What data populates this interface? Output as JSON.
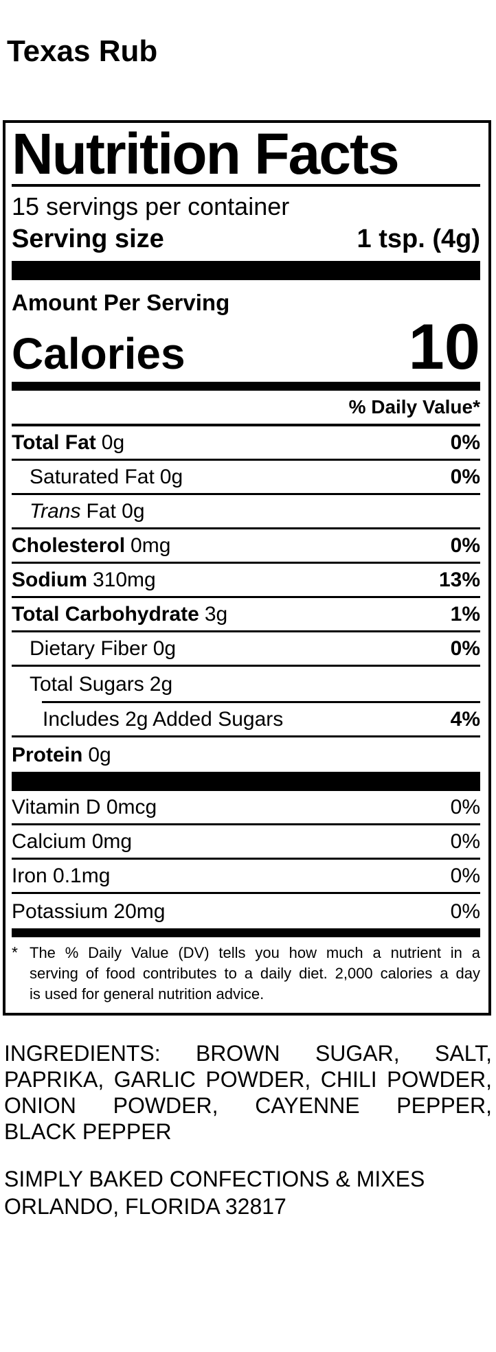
{
  "product_title": "Texas Rub",
  "colors": {
    "ink": "#000000",
    "background": "#ffffff"
  },
  "nutrition_label": {
    "title": "Nutrition Facts",
    "servings_per_container": "15 servings per container",
    "serving_size": {
      "label": "Serving size",
      "value": "1 tsp. (4g)"
    },
    "amount_per_serving_label": "Amount Per Serving",
    "calories": {
      "label": "Calories",
      "value": "10"
    },
    "daily_value_header": "% Daily Value*",
    "nutrient_rows": [
      {
        "name": "Total Fat",
        "amount": "0g",
        "dv": "0%"
      },
      {
        "name": "Saturated Fat",
        "amount": "0g",
        "dv": "0%"
      },
      {
        "name": "Trans",
        "amount": "Fat 0g",
        "dv": ""
      },
      {
        "name": "Cholesterol",
        "amount": "0mg",
        "dv": "0%"
      },
      {
        "name": "Sodium",
        "amount": "310mg",
        "dv": "13%"
      },
      {
        "name": "Total Carbohydrate",
        "amount": "3g",
        "dv": "1%"
      },
      {
        "name": "Dietary Fiber",
        "amount": "0g",
        "dv": "0%"
      },
      {
        "name": "Total Sugars",
        "amount": "2g",
        "dv": ""
      },
      {
        "name": "Includes 2g Added Sugars",
        "amount": "",
        "dv": "4%"
      },
      {
        "name": "Protein",
        "amount": "0g",
        "dv": ""
      }
    ],
    "micronutrient_rows": [
      {
        "name": "Vitamin D 0mcg",
        "dv": "0%"
      },
      {
        "name": "Calcium 0mg",
        "dv": "0%"
      },
      {
        "name": "Iron 0.1mg",
        "dv": "0%"
      },
      {
        "name": "Potassium 20mg",
        "dv": "0%"
      }
    ],
    "footnote": {
      "marker": "*",
      "lines": [
        "The % Daily Value (DV) tells you how much a nutrient in a",
        "serving of food contributes to a daily diet. 2,000 calories a day",
        "is used for general nutrition advice."
      ]
    }
  },
  "ingredients": {
    "lines": [
      "INGREDIENTS: BROWN SUGAR, SALT,",
      "PAPRIKA, GARLIC POWDER, CHILI POWDER,",
      "ONION POWDER, CAYENNE PEPPER,",
      "BLACK PEPPER"
    ]
  },
  "manufacturer": {
    "name": "SIMPLY BAKED CONFECTIONS & MIXES",
    "location": "ORLANDO, FLORIDA 32817"
  }
}
